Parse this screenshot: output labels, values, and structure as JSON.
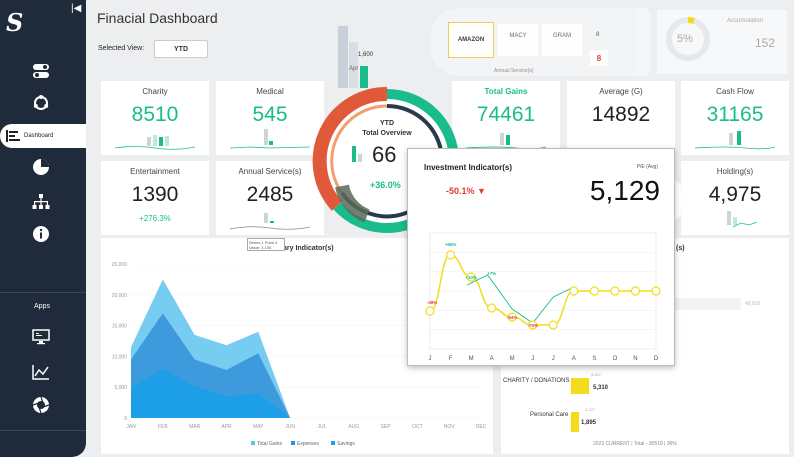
{
  "sidebar": {
    "active_label": "Dashboard",
    "apps_label": "Apps"
  },
  "header": {
    "title": "Finacial Dashboard",
    "selected_view_label": "Selected View:",
    "selected_view_value": "YTD"
  },
  "top_right": {
    "amazon": "AMAZON",
    "macy": "MACY",
    "gram": "GRAM",
    "eight_top": "8",
    "eight_bottom": "8",
    "annual_services": "Annual Service(s)",
    "accumulation_label": "Accumulation",
    "accumulation_pct": "5%",
    "accumulation_val": "152"
  },
  "mini_bar": {
    "value": "1,600",
    "label": "Apr"
  },
  "kpis": [
    {
      "title": "Charity",
      "value": "8510"
    },
    {
      "title": "Medical",
      "value": "545"
    },
    {
      "title": "Total Gains",
      "value": "74461"
    },
    {
      "title": "Average (G)",
      "value": "14892"
    },
    {
      "title": "Cash Flow",
      "value": "31165"
    },
    {
      "title": "Entertainment",
      "value": "1390",
      "sub": "+276.3%"
    },
    {
      "title": "Annual Service(s)",
      "value": "2485"
    },
    {
      "title": "Holding(s)",
      "value": "4,975"
    }
  ],
  "donut": {
    "ytd": "YTD",
    "label": "Total Overview",
    "value": "66",
    "sub": "+36.0%"
  },
  "area_panel": {
    "title": "ary Indicator(s)",
    "tooltip_line1": "Series 1 Point 4",
    "tooltip_line2": "Value: 1,150",
    "y_ticks": [
      "25,000",
      "20,000",
      "15,000",
      "10,000",
      "5,000",
      "0"
    ],
    "x_ticks": [
      "JAN",
      "FEB",
      "MAR",
      "APR",
      "MAY",
      "JUN",
      "JUL",
      "AUG",
      "SEP",
      "OCT",
      "NOV",
      "DEC"
    ],
    "legend": [
      "Total Gains",
      "Expenses",
      "Savings"
    ]
  },
  "popup": {
    "title": "Investment Indicator(s)",
    "pe_label": "P/E (Avg)",
    "change": "-50.1%",
    "value": "5,129",
    "months": [
      "J",
      "F",
      "M",
      "A",
      "M",
      "J",
      "J",
      "A",
      "S",
      "O",
      "N",
      "D"
    ],
    "labels": [
      "-49%",
      "+66%",
      "+10%",
      "+7%",
      "-54%",
      "-70%"
    ]
  },
  "right_panel": {
    "heading_fragment": "(s)",
    "faint_value": "48,816",
    "charity_label": "CHARITY / DONATIONS",
    "charity_value": "5,310",
    "charity_prev": "4,847",
    "personal_label": "Personal Care",
    "personal_value": "1,895",
    "personal_prev": "2,127",
    "footer": "2023  CURRENT  |  Total - 30519 | 36%"
  },
  "colors": {
    "sidebar": "#1f2a3a",
    "teal": "#1abc8c",
    "orange": "#e05a3a",
    "yellow": "#f2dc1b",
    "blue": "#2f8fd8",
    "red": "#e53935"
  },
  "chart_data": {
    "type": "area",
    "categories": [
      "JAN",
      "FEB",
      "MAR",
      "APR",
      "MAY",
      "JUN",
      "JUL",
      "AUG",
      "SEP",
      "OCT",
      "NOV",
      "DEC"
    ],
    "ylim": [
      0,
      25000
    ],
    "series": [
      {
        "name": "Total Gains",
        "values": [
          11500,
          22500,
          13500,
          11800,
          14000,
          0,
          0,
          0,
          0,
          0,
          0,
          0
        ]
      },
      {
        "name": "Expenses",
        "values": [
          9500,
          17000,
          9500,
          7800,
          10500,
          0,
          0,
          0,
          0,
          0,
          0,
          0
        ]
      },
      {
        "name": "Savings",
        "values": [
          5000,
          8000,
          5200,
          3500,
          4000,
          0,
          0,
          0,
          0,
          0,
          0,
          0
        ]
      }
    ]
  }
}
